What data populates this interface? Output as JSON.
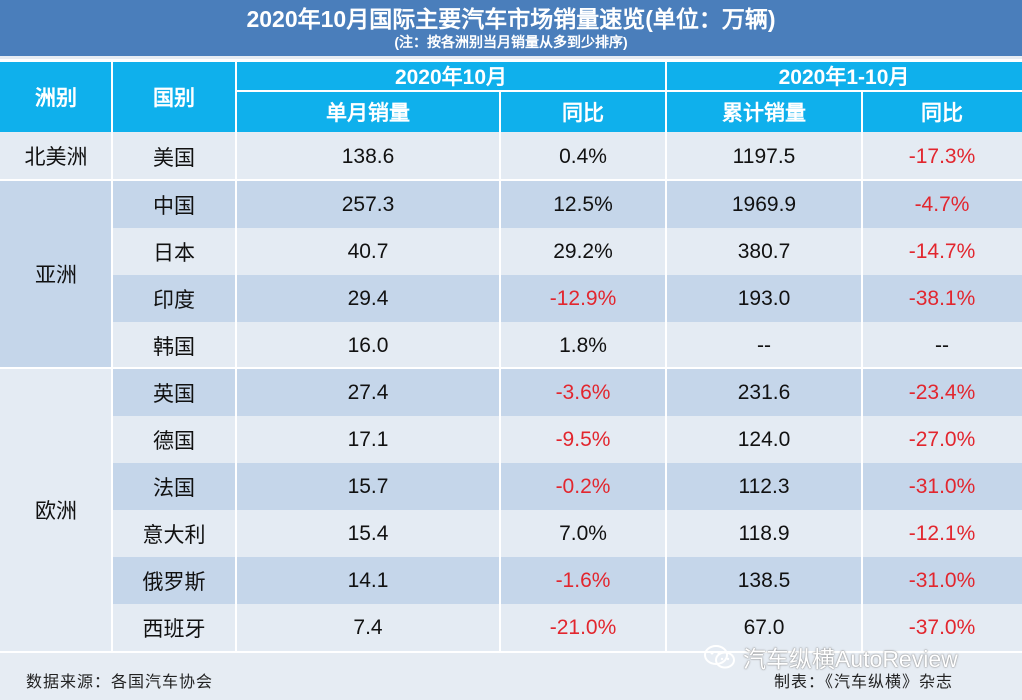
{
  "title": "2020年10月国际主要汽车市场销量速览(单位：万辆)",
  "note": "(注：按各洲别当月销量从多到少排序)",
  "headers": {
    "continent": "洲别",
    "country": "国别",
    "period1": "2020年10月",
    "period2": "2020年1-10月",
    "monthly_sales": "单月销量",
    "yoy1": "同比",
    "cumulative_sales": "累计销量",
    "yoy2": "同比"
  },
  "continents": [
    "北美洲",
    "亚洲",
    "欧洲"
  ],
  "rows": [
    {
      "country": "美国",
      "monthly": "138.6",
      "yoy_month": "0.4%",
      "cumulative": "1197.5",
      "yoy_cum": "-17.3%"
    },
    {
      "country": "中国",
      "monthly": "257.3",
      "yoy_month": "12.5%",
      "cumulative": "1969.9",
      "yoy_cum": "-4.7%"
    },
    {
      "country": "日本",
      "monthly": "40.7",
      "yoy_month": "29.2%",
      "cumulative": "380.7",
      "yoy_cum": "-14.7%"
    },
    {
      "country": "印度",
      "monthly": "29.4",
      "yoy_month": "-12.9%",
      "cumulative": "193.0",
      "yoy_cum": "-38.1%"
    },
    {
      "country": "韩国",
      "monthly": "16.0",
      "yoy_month": "1.8%",
      "cumulative": "--",
      "yoy_cum": "--"
    },
    {
      "country": "英国",
      "monthly": "27.4",
      "yoy_month": "-3.6%",
      "cumulative": "231.6",
      "yoy_cum": "-23.4%"
    },
    {
      "country": "德国",
      "monthly": "17.1",
      "yoy_month": "-9.5%",
      "cumulative": "124.0",
      "yoy_cum": "-27.0%"
    },
    {
      "country": "法国",
      "monthly": "15.7",
      "yoy_month": "-0.2%",
      "cumulative": "112.3",
      "yoy_cum": "-31.0%"
    },
    {
      "country": "意大利",
      "monthly": "15.4",
      "yoy_month": "7.0%",
      "cumulative": "118.9",
      "yoy_cum": "-12.1%"
    },
    {
      "country": "俄罗斯",
      "monthly": "14.1",
      "yoy_month": "-1.6%",
      "cumulative": "138.5",
      "yoy_cum": "-31.0%"
    },
    {
      "country": "西班牙",
      "monthly": "7.4",
      "yoy_month": "-21.0%",
      "cumulative": "67.0",
      "yoy_cum": "-37.0%"
    }
  ],
  "footer_source": "数据来源：各国汽车协会",
  "footer_maker": "制表：《汽车纵横》杂志",
  "watermark": "汽车纵横AutoReview",
  "colors": {
    "header_bg": "#0fb0ec",
    "title_bg": "#4a7ebb",
    "row_dark": "#c5d6ea",
    "row_light": "#e4ebf3",
    "negative": "#e2262e"
  }
}
